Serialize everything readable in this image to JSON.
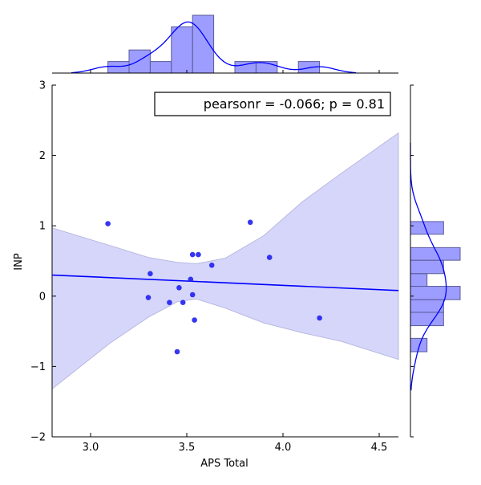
{
  "chart_data": {
    "type": "scatter",
    "xlabel": "APS Total",
    "ylabel": "INP",
    "xlim": [
      2.8,
      4.6
    ],
    "ylim": [
      -2,
      3
    ],
    "xticks": [
      3.0,
      3.5,
      4.0,
      4.5
    ],
    "xtick_labels": [
      "3.0",
      "3.5",
      "4.0",
      "4.5"
    ],
    "yticks": [
      -2,
      -1,
      0,
      1,
      2,
      3
    ],
    "ytick_labels": [
      "−2",
      "−1",
      "0",
      "1",
      "2",
      "3"
    ],
    "annotation": "pearsonr = -0.066; p = 0.81",
    "points": [
      {
        "x": 3.09,
        "y": 1.03
      },
      {
        "x": 3.3,
        "y": -0.02
      },
      {
        "x": 3.31,
        "y": 0.32
      },
      {
        "x": 3.41,
        "y": -0.09
      },
      {
        "x": 3.45,
        "y": -0.79
      },
      {
        "x": 3.46,
        "y": 0.12
      },
      {
        "x": 3.48,
        "y": -0.09
      },
      {
        "x": 3.52,
        "y": 0.24
      },
      {
        "x": 3.53,
        "y": 0.02
      },
      {
        "x": 3.53,
        "y": 0.59
      },
      {
        "x": 3.54,
        "y": -0.34
      },
      {
        "x": 3.56,
        "y": 0.59
      },
      {
        "x": 3.63,
        "y": 0.44
      },
      {
        "x": 3.83,
        "y": 1.05
      },
      {
        "x": 3.93,
        "y": 0.55
      },
      {
        "x": 4.19,
        "y": -0.31
      }
    ],
    "regression": {
      "x": [
        2.8,
        4.6
      ],
      "y": [
        0.3,
        0.08
      ]
    },
    "confidence_band": {
      "x": [
        2.8,
        3.1,
        3.3,
        3.45,
        3.55,
        3.7,
        3.9,
        4.1,
        4.3,
        4.6
      ],
      "upper": [
        0.97,
        0.72,
        0.55,
        0.48,
        0.46,
        0.54,
        0.86,
        1.34,
        1.74,
        2.32
      ],
      "lower": [
        -1.32,
        -0.67,
        -0.3,
        -0.08,
        -0.04,
        -0.17,
        -0.38,
        -0.52,
        -0.64,
        -0.9
      ]
    },
    "x_marginal_hist": {
      "bin_edges": [
        3.09,
        3.2,
        3.31,
        3.42,
        3.53,
        3.64,
        3.75,
        3.86,
        3.97,
        4.08,
        4.19
      ],
      "counts": [
        1,
        2,
        1,
        4,
        5,
        0,
        1,
        1,
        0,
        1
      ]
    },
    "y_marginal_hist": {
      "bin_edges": [
        -0.79,
        -0.6,
        -0.42,
        -0.23,
        -0.05,
        0.14,
        0.32,
        0.51,
        0.69,
        0.88,
        1.06
      ],
      "counts": [
        1,
        0,
        2,
        2,
        3,
        1,
        2,
        3,
        0,
        2
      ]
    },
    "kde_x_range": [
      2.9,
      4.38
    ],
    "kde_y_range": [
      -1.34,
      2.2
    ],
    "kde_bandwidth_x": 0.08,
    "kde_bandwidth_y": 0.27,
    "series_color": "#0000ff",
    "hist_color": "#8c8cff",
    "band_color": "#d6d6fb"
  }
}
